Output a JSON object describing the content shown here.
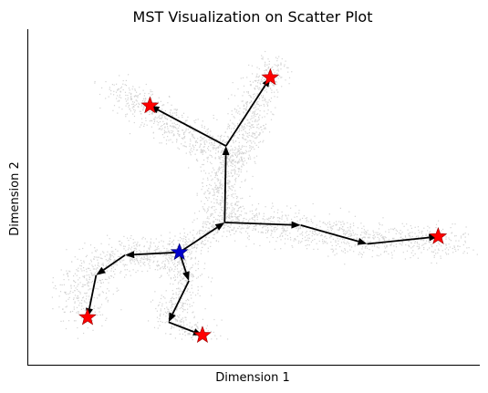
{
  "chart_data": {
    "type": "scatter",
    "title": "MST Visualization on Scatter Plot",
    "xlabel": "Dimension 1",
    "ylabel": "Dimension 2",
    "xlim": [
      0,
      100
    ],
    "ylim": [
      0,
      100
    ],
    "ticks": false,
    "grid": false,
    "spines": [
      "left",
      "bottom"
    ],
    "colors": {
      "points": "#d3d3d3",
      "edges": "#000000",
      "terminal_star": "#ff0000",
      "root_star": "#0000cc"
    },
    "point_clusters": [
      {
        "path": [
          [
            19.2,
            81.9
          ],
          [
            24.2,
            79.2
          ],
          [
            29.3,
            73.7
          ],
          [
            36.4,
            67.9
          ],
          [
            43.4,
            63.2
          ],
          [
            45.5,
            59.6
          ]
        ],
        "spread": 2.6,
        "n": 650
      },
      {
        "path": [
          [
            45.5,
            60.1
          ],
          [
            48.5,
            71.2
          ],
          [
            51.5,
            82.3
          ],
          [
            54.5,
            89.7
          ]
        ],
        "spread": 2.4,
        "n": 520
      },
      {
        "path": [
          [
            43.4,
            58.2
          ],
          [
            43.4,
            50.0
          ],
          [
            43.4,
            42.9
          ]
        ],
        "spread": 2.3,
        "n": 320
      },
      {
        "path": [
          [
            43.4,
            42.9
          ],
          [
            57.6,
            41.2
          ],
          [
            72.7,
            37.7
          ],
          [
            88.9,
            36.6
          ],
          [
            95.0,
            37.2
          ]
        ],
        "spread": 3.0,
        "n": 900
      },
      {
        "path": [
          [
            43.4,
            42.9
          ],
          [
            38.4,
            38.6
          ],
          [
            33.3,
            33.2
          ]
        ],
        "spread": 2.0,
        "n": 220
      },
      {
        "path": [
          [
            33.3,
            33.2
          ],
          [
            23.2,
            32.4
          ],
          [
            17.2,
            31.2
          ],
          [
            12.1,
            24.7
          ],
          [
            13.1,
            14.4
          ]
        ],
        "spread": 3.0,
        "n": 620
      },
      {
        "path": [
          [
            33.3,
            33.2
          ],
          [
            35.4,
            25.2
          ],
          [
            31.3,
            13.3
          ],
          [
            39.4,
            8.4
          ]
        ],
        "spread": 2.2,
        "n": 420
      }
    ],
    "nodes": [
      {
        "id": "root",
        "x": 33.6,
        "y": 33.5,
        "kind": "root"
      },
      {
        "id": "n1",
        "x": 43.6,
        "y": 42.4,
        "kind": "branch"
      },
      {
        "id": "n2",
        "x": 43.9,
        "y": 65.2,
        "kind": "branch"
      },
      {
        "id": "t1",
        "x": 27.1,
        "y": 77.2,
        "kind": "terminal"
      },
      {
        "id": "t2",
        "x": 53.7,
        "y": 85.6,
        "kind": "terminal"
      },
      {
        "id": "n3",
        "x": 60.4,
        "y": 41.6,
        "kind": "branch"
      },
      {
        "id": "n4",
        "x": 75.1,
        "y": 36.0,
        "kind": "branch"
      },
      {
        "id": "t3",
        "x": 90.8,
        "y": 38.2,
        "kind": "terminal"
      },
      {
        "id": "n5",
        "x": 21.6,
        "y": 32.7,
        "kind": "branch"
      },
      {
        "id": "n6",
        "x": 15.2,
        "y": 26.7,
        "kind": "branch"
      },
      {
        "id": "t4",
        "x": 13.3,
        "y": 14.1,
        "kind": "terminal"
      },
      {
        "id": "n7",
        "x": 35.7,
        "y": 25.0,
        "kind": "branch"
      },
      {
        "id": "n8",
        "x": 31.2,
        "y": 12.7,
        "kind": "branch"
      },
      {
        "id": "t5",
        "x": 38.7,
        "y": 8.8,
        "kind": "terminal"
      }
    ],
    "edges": [
      [
        "root",
        "n1"
      ],
      [
        "n1",
        "n2"
      ],
      [
        "n2",
        "t1"
      ],
      [
        "n2",
        "t2"
      ],
      [
        "n1",
        "n3"
      ],
      [
        "n3",
        "n4"
      ],
      [
        "n4",
        "t3"
      ],
      [
        "root",
        "n5"
      ],
      [
        "n5",
        "n6"
      ],
      [
        "n6",
        "t4"
      ],
      [
        "root",
        "n7"
      ],
      [
        "n7",
        "n8"
      ],
      [
        "n8",
        "t5"
      ]
    ]
  }
}
